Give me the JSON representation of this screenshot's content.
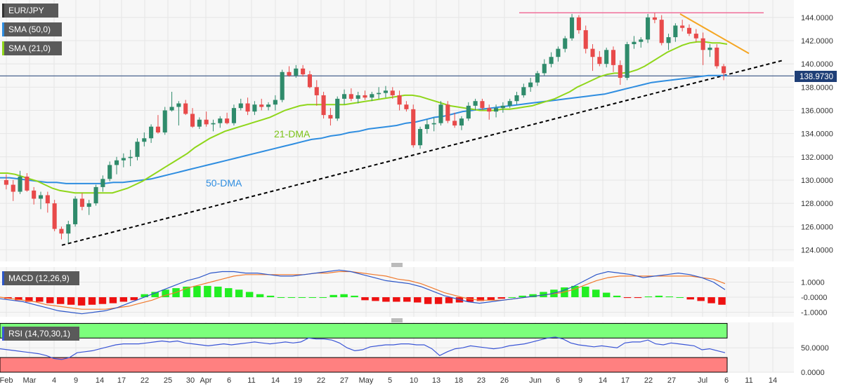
{
  "chart_data": [
    {
      "panel": "price",
      "type": "candlestick",
      "symbol": "EUR/JPY",
      "legend": [
        {
          "label": "EUR/JPY",
          "color": "#333333"
        },
        {
          "label": "SMA (50,0)",
          "color": "#2e8de0"
        },
        {
          "label": "SMA (21,0)",
          "color": "#8fd61a"
        }
      ],
      "ylim": [
        123.0,
        145.5
      ],
      "y_ticks": [
        "144.0000",
        "142.0000",
        "140.0000",
        "138.0000",
        "136.0000",
        "134.0000",
        "132.0000",
        "130.0000",
        "128.0000",
        "126.0000",
        "124.0000"
      ],
      "last_price": "138.9730",
      "annotations": [
        {
          "text": "21-DMA",
          "color": "#7cc318"
        },
        {
          "text": "50-DMA",
          "color": "#2e8de0"
        }
      ],
      "candles": [
        [
          130.0,
          130.5,
          129.2,
          129.6
        ],
        [
          129.6,
          130.0,
          128.2,
          129.0
        ],
        [
          129.0,
          130.8,
          128.8,
          130.3
        ],
        [
          130.3,
          130.6,
          129.0,
          129.1
        ],
        [
          129.1,
          129.4,
          127.9,
          128.4
        ],
        [
          128.4,
          129.0,
          127.5,
          128.7
        ],
        [
          128.7,
          129.0,
          127.2,
          128.0
        ],
        [
          128.0,
          128.3,
          125.6,
          125.8
        ],
        [
          125.8,
          126.0,
          124.9,
          125.4
        ],
        [
          125.4,
          126.5,
          124.6,
          126.2
        ],
        [
          126.2,
          128.6,
          126.0,
          128.4
        ],
        [
          128.4,
          128.9,
          127.4,
          127.7
        ],
        [
          127.7,
          128.3,
          127.0,
          128.0
        ],
        [
          128.0,
          129.6,
          127.8,
          129.4
        ],
        [
          129.4,
          130.4,
          129.0,
          130.1
        ],
        [
          130.1,
          131.6,
          129.9,
          131.3
        ],
        [
          131.3,
          132.0,
          130.5,
          131.7
        ],
        [
          131.7,
          132.3,
          131.1,
          131.9
        ],
        [
          131.9,
          132.6,
          131.2,
          132.0
        ],
        [
          132.0,
          133.6,
          131.7,
          133.3
        ],
        [
          133.3,
          134.1,
          132.9,
          133.6
        ],
        [
          133.6,
          134.8,
          133.2,
          134.6
        ],
        [
          134.6,
          135.6,
          134.0,
          134.1
        ],
        [
          134.1,
          136.3,
          133.9,
          136.0
        ],
        [
          136.0,
          137.6,
          135.9,
          136.3
        ],
        [
          136.3,
          136.8,
          134.7,
          136.6
        ],
        [
          136.6,
          136.9,
          135.6,
          135.7
        ],
        [
          135.7,
          136.2,
          134.5,
          134.6
        ],
        [
          134.6,
          135.4,
          134.4,
          135.2
        ],
        [
          135.2,
          135.9,
          134.6,
          134.8
        ],
        [
          134.8,
          135.2,
          134.2,
          134.9
        ],
        [
          134.9,
          135.5,
          134.5,
          135.3
        ],
        [
          135.3,
          135.8,
          134.8,
          134.9
        ],
        [
          134.9,
          136.5,
          134.7,
          136.2
        ],
        [
          136.2,
          137.0,
          136.0,
          136.6
        ],
        [
          136.6,
          137.1,
          135.6,
          135.9
        ],
        [
          135.9,
          136.8,
          135.6,
          136.5
        ],
        [
          136.5,
          137.0,
          136.0,
          136.3
        ],
        [
          136.3,
          136.7,
          136.0,
          136.5
        ],
        [
          136.5,
          137.3,
          136.0,
          136.9
        ],
        [
          136.9,
          139.5,
          136.7,
          139.3
        ],
        [
          139.3,
          139.8,
          138.9,
          139.0
        ],
        [
          139.0,
          139.9,
          138.8,
          139.6
        ],
        [
          139.6,
          139.9,
          138.9,
          139.1
        ],
        [
          139.1,
          139.4,
          137.9,
          138.0
        ],
        [
          138.0,
          138.6,
          136.4,
          137.3
        ],
        [
          137.3,
          137.6,
          135.3,
          135.6
        ],
        [
          135.6,
          136.2,
          134.7,
          135.3
        ],
        [
          135.3,
          137.2,
          135.1,
          137.0
        ],
        [
          137.0,
          137.8,
          136.5,
          137.4
        ],
        [
          137.4,
          137.9,
          136.8,
          137.0
        ],
        [
          137.0,
          137.6,
          136.6,
          137.3
        ],
        [
          137.3,
          137.7,
          136.9,
          137.1
        ],
        [
          137.1,
          137.6,
          136.8,
          137.4
        ],
        [
          137.4,
          138.0,
          137.0,
          137.5
        ],
        [
          137.5,
          138.1,
          137.1,
          137.7
        ],
        [
          137.7,
          138.0,
          137.0,
          137.3
        ],
        [
          137.3,
          137.7,
          136.0,
          136.5
        ],
        [
          136.5,
          136.8,
          135.9,
          136.1
        ],
        [
          136.1,
          136.5,
          132.8,
          133.0
        ],
        [
          133.0,
          134.6,
          132.7,
          134.4
        ],
        [
          134.4,
          135.2,
          134.0,
          134.8
        ],
        [
          134.8,
          135.4,
          134.2,
          134.9
        ],
        [
          134.9,
          136.8,
          134.7,
          136.5
        ],
        [
          136.5,
          136.8,
          134.9,
          135.1
        ],
        [
          135.1,
          135.8,
          134.5,
          134.7
        ],
        [
          134.7,
          135.5,
          134.3,
          135.3
        ],
        [
          135.3,
          136.7,
          135.1,
          136.4
        ],
        [
          136.4,
          137.0,
          136.0,
          136.8
        ],
        [
          136.8,
          137.0,
          136.0,
          136.2
        ],
        [
          136.2,
          136.5,
          135.2,
          135.9
        ],
        [
          135.9,
          136.5,
          135.4,
          136.2
        ],
        [
          136.2,
          136.7,
          135.8,
          136.4
        ],
        [
          136.4,
          137.0,
          136.2,
          136.8
        ],
        [
          136.8,
          137.6,
          136.5,
          137.3
        ],
        [
          137.3,
          138.3,
          137.1,
          138.0
        ],
        [
          138.0,
          138.8,
          137.6,
          138.4
        ],
        [
          138.4,
          139.4,
          138.1,
          139.2
        ],
        [
          139.2,
          140.4,
          139.0,
          140.0
        ],
        [
          140.0,
          141.0,
          139.7,
          140.6
        ],
        [
          140.6,
          141.5,
          140.2,
          141.3
        ],
        [
          141.3,
          142.4,
          141.0,
          142.2
        ],
        [
          142.2,
          144.3,
          142.0,
          144.0
        ],
        [
          144.0,
          144.2,
          142.6,
          142.9
        ],
        [
          142.9,
          143.3,
          140.9,
          141.3
        ],
        [
          141.3,
          141.7,
          139.4,
          140.6
        ],
        [
          140.6,
          141.1,
          139.8,
          140.0
        ],
        [
          140.0,
          141.4,
          139.7,
          141.2
        ],
        [
          141.2,
          141.5,
          139.3,
          139.9
        ],
        [
          139.9,
          140.3,
          138.2,
          138.8
        ],
        [
          138.8,
          141.9,
          138.6,
          141.7
        ],
        [
          141.7,
          142.4,
          141.3,
          141.9
        ],
        [
          141.9,
          142.3,
          141.4,
          142.1
        ],
        [
          142.1,
          144.3,
          141.8,
          144.0
        ],
        [
          144.0,
          144.4,
          143.5,
          143.8
        ],
        [
          143.8,
          144.2,
          141.6,
          141.8
        ],
        [
          141.8,
          142.6,
          141.2,
          142.3
        ],
        [
          142.3,
          143.5,
          141.9,
          143.3
        ],
        [
          143.3,
          143.8,
          142.8,
          143.1
        ],
        [
          143.1,
          143.4,
          142.4,
          142.6
        ],
        [
          142.6,
          143.0,
          141.9,
          142.2
        ],
        [
          142.2,
          142.7,
          139.9,
          141.2
        ],
        [
          141.2,
          141.7,
          140.6,
          141.4
        ],
        [
          141.4,
          141.7,
          139.6,
          139.8
        ],
        [
          139.8,
          140.0,
          138.6,
          139.2
        ]
      ],
      "sma21": [
        130.6,
        130.6,
        130.5,
        130.3,
        130.1,
        129.9,
        129.6,
        129.3,
        129.1,
        129.0,
        128.9,
        128.9,
        128.9,
        128.9,
        128.9,
        128.9,
        129.1,
        129.3,
        129.6,
        129.9,
        130.3,
        130.7,
        131.1,
        131.5,
        131.9,
        132.3,
        132.8,
        133.2,
        133.6,
        133.9,
        134.2,
        134.4,
        134.6,
        134.8,
        135.0,
        135.2,
        135.4,
        135.7,
        136.0,
        136.2,
        136.4,
        136.5,
        136.5,
        136.5,
        136.5,
        136.5,
        136.5,
        136.6,
        136.7,
        136.8,
        136.9,
        137.0,
        137.1,
        137.2,
        137.3,
        137.3,
        137.2,
        137.0,
        136.8,
        136.6,
        136.4,
        136.3,
        136.2,
        136.1,
        136.0,
        136.0,
        136.0,
        136.1,
        136.1,
        136.2,
        136.3,
        136.4,
        136.6,
        136.8,
        137.0,
        137.3,
        137.6,
        138.0,
        138.3,
        138.6,
        138.9,
        139.1,
        139.2,
        139.2,
        139.3,
        139.5,
        139.8,
        140.2,
        140.6,
        141.0,
        141.3,
        141.6,
        141.8,
        141.9,
        141.9,
        141.8,
        141.8,
        141.7
      ],
      "sma50": [
        130.2,
        130.2,
        130.1,
        130.0,
        129.9,
        129.8,
        129.8,
        129.7,
        129.7,
        129.7,
        129.7,
        129.7,
        129.8,
        129.8,
        129.9,
        130.0,
        130.1,
        130.3,
        130.5,
        130.7,
        130.9,
        131.1,
        131.3,
        131.5,
        131.7,
        131.9,
        132.1,
        132.3,
        132.5,
        132.7,
        132.9,
        133.1,
        133.3,
        133.5,
        133.6,
        133.8,
        133.9,
        134.1,
        134.2,
        134.4,
        134.5,
        134.6,
        134.7,
        134.9,
        135.0,
        135.2,
        135.4,
        135.5,
        135.7,
        135.9,
        136.0,
        136.1,
        136.2,
        136.3,
        136.4,
        136.5,
        136.6,
        136.7,
        136.8,
        136.9,
        137.0,
        137.1,
        137.2,
        137.3,
        137.4,
        137.6,
        137.8,
        138.0,
        138.2,
        138.4,
        138.5,
        138.6,
        138.7,
        138.8,
        138.9,
        139.0,
        139.0,
        139.0
      ],
      "lines": [
        {
          "name": "ascending-support",
          "style": "dashed",
          "color": "#000000",
          "points": [
            [
              "2022-03-07",
              124.4
            ],
            [
              "2022-07-14",
              140.3
            ]
          ]
        },
        {
          "name": "descending-resistance",
          "style": "solid",
          "color": "#f5a623",
          "points": [
            [
              "2022-06-28",
              144.3
            ],
            [
              "2022-07-11",
              140.9
            ]
          ]
        },
        {
          "name": "horizontal-resistance",
          "style": "solid",
          "color": "#f06f9a",
          "points": [
            [
              "2022-05-30",
              144.4
            ],
            [
              "2022-07-12",
              144.4
            ]
          ]
        },
        {
          "name": "last-price-line",
          "style": "solid",
          "color": "#1f3f77",
          "points": [
            [
              "2022-01-31",
              138.97
            ],
            [
              "2022-07-15",
              138.97
            ]
          ]
        }
      ]
    },
    {
      "panel": "macd",
      "type": "histogram+line",
      "label": "MACD (12,26,9)",
      "y_ticks": [
        "1.0000",
        "-0.0000",
        "-1.0000"
      ],
      "ylim": [
        -1.3,
        2.0
      ],
      "macd_line": [
        -0.1,
        -0.2,
        -0.3,
        -0.5,
        -0.7,
        -0.9,
        -1.0,
        -1.1,
        -1.0,
        -0.9,
        -0.7,
        -0.4,
        -0.1,
        0.2,
        0.5,
        0.8,
        1.1,
        1.3,
        1.6,
        1.7,
        1.7,
        1.6,
        1.6,
        1.5,
        1.4,
        1.4,
        1.5,
        1.6,
        1.7,
        1.8,
        1.7,
        1.5,
        1.3,
        1.1,
        1.0,
        0.9,
        0.7,
        0.4,
        0.1,
        -0.1,
        -0.3,
        -0.4,
        -0.3,
        -0.2,
        -0.1,
        0.0,
        0.1,
        0.2,
        0.4,
        0.7,
        1.1,
        1.5,
        1.7,
        1.6,
        1.5,
        1.3,
        1.4,
        1.5,
        1.6,
        1.5,
        1.3,
        1.0,
        0.5
      ],
      "signal_line": [
        0.0,
        -0.1,
        -0.2,
        -0.3,
        -0.5,
        -0.6,
        -0.7,
        -0.8,
        -0.8,
        -0.8,
        -0.7,
        -0.6,
        -0.4,
        -0.2,
        0.1,
        0.3,
        0.6,
        0.8,
        1.0,
        1.2,
        1.4,
        1.5,
        1.5,
        1.5,
        1.5,
        1.5,
        1.5,
        1.6,
        1.6,
        1.7,
        1.7,
        1.6,
        1.5,
        1.4,
        1.2,
        1.1,
        0.9,
        0.6,
        0.3,
        0.1,
        -0.1,
        -0.2,
        -0.2,
        -0.2,
        -0.1,
        0.0,
        0.1,
        0.2,
        0.3,
        0.5,
        0.8,
        1.1,
        1.3,
        1.4,
        1.4,
        1.4,
        1.4,
        1.4,
        1.4,
        1.4,
        1.3,
        1.2,
        0.9
      ],
      "histogram": [
        -0.1,
        -0.2,
        -0.3,
        -0.3,
        -0.4,
        -0.45,
        -0.5,
        -0.55,
        -0.5,
        -0.45,
        -0.4,
        -0.3,
        -0.2,
        0.2,
        0.35,
        0.5,
        0.6,
        0.7,
        0.75,
        0.75,
        0.7,
        0.6,
        0.5,
        0.35,
        0.2,
        0.1,
        0.0,
        0.0,
        0.0,
        0.0,
        0.0,
        0.15,
        0.2,
        0.1,
        -0.2,
        -0.25,
        -0.3,
        -0.3,
        -0.3,
        -0.35,
        -0.45,
        -0.45,
        -0.4,
        -0.35,
        -0.3,
        -0.25,
        -0.2,
        -0.1,
        0.0,
        0.1,
        0.2,
        0.35,
        0.5,
        0.65,
        0.75,
        0.7,
        0.5,
        0.3,
        0.1,
        -0.05,
        -0.05,
        0.05,
        0.1,
        0.05,
        0.0,
        -0.15,
        -0.25,
        -0.4,
        -0.5
      ]
    },
    {
      "panel": "rsi",
      "type": "line",
      "label": "RSI (14,70,30,1)",
      "y_ticks": [
        "50.0000",
        "0.0000"
      ],
      "ylim": [
        0,
        100
      ],
      "overbought": 70,
      "oversold": 30,
      "overbought_color": "#7cff7c",
      "oversold_color": "#ff8080",
      "values": [
        48,
        46,
        44,
        42,
        40,
        38,
        34,
        28,
        26,
        30,
        40,
        42,
        44,
        48,
        52,
        56,
        58,
        58,
        58,
        60,
        62,
        64,
        62,
        64,
        60,
        58,
        56,
        54,
        56,
        58,
        56,
        58,
        60,
        62,
        60,
        58,
        60,
        62,
        60,
        62,
        70,
        68,
        68,
        66,
        60,
        50,
        44,
        46,
        52,
        54,
        56,
        56,
        58,
        58,
        56,
        56,
        48,
        34,
        42,
        48,
        50,
        54,
        52,
        50,
        48,
        50,
        54,
        56,
        58,
        62,
        66,
        70,
        72,
        68,
        60,
        56,
        54,
        52,
        54,
        52,
        50,
        60,
        62,
        62,
        66,
        58,
        56,
        60,
        58,
        56,
        54,
        46,
        48,
        44,
        40
      ]
    }
  ],
  "x_axis": {
    "tick_labels": [
      "Feb",
      "Mar",
      "4",
      "9",
      "14",
      "17",
      "22",
      "25",
      "30",
      "Apr",
      "6",
      "11",
      "14",
      "19",
      "22",
      "27",
      "May",
      "5",
      "10",
      "13",
      "18",
      "23",
      "26",
      "Jun",
      "6",
      "9",
      "14",
      "17",
      "22",
      "27",
      "Jul",
      "6",
      "11",
      "14"
    ]
  },
  "colors": {
    "up_candle": "#2f8b6b",
    "down_candle": "#e84a4a",
    "macd_pos": "#22ee22",
    "macd_neg": "#ee1111",
    "macd_line": "#2d57c9",
    "signal_line": "#f07a2e",
    "rsi_line": "#3a55d6",
    "grid": "#e6e6e6",
    "price_tag_bg": "#1f3f77"
  }
}
